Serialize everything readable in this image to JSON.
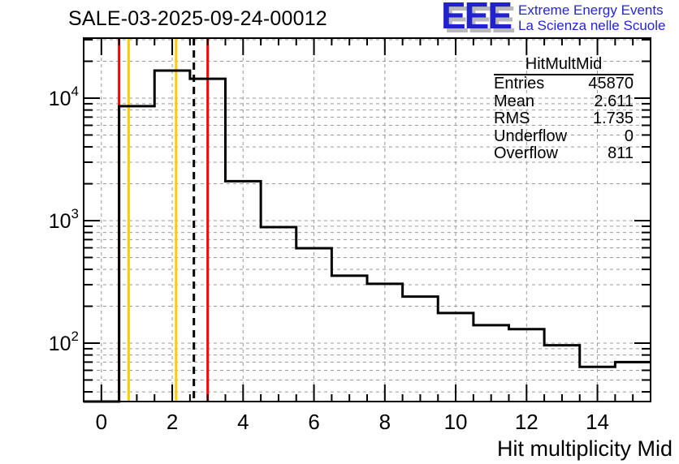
{
  "logo": {
    "acronym": "EEE",
    "line1": "Extreme Energy Events",
    "line2": "La Scienza nelle Scuole",
    "color": "#2222cc",
    "shadow_color": "#b9b9b9"
  },
  "stats": {
    "title": "HitMultMid",
    "rows": [
      {
        "label": "Entries",
        "value": "45870"
      },
      {
        "label": "Mean",
        "value": "2.611"
      },
      {
        "label": "RMS",
        "value": "1.735"
      },
      {
        "label": "Underflow",
        "value": "0"
      },
      {
        "label": "Overflow",
        "value": "811"
      }
    ]
  },
  "chart_data": {
    "type": "histogram-step",
    "title": "SALE-03-2025-09-24-00012",
    "xlabel": "Hit multiplicity Mid",
    "ylabel": "",
    "x_range": [
      -0.5,
      15.5
    ],
    "y_scale": "log",
    "y_range": [
      33.35,
      30900
    ],
    "x_major_ticks": [
      0,
      2,
      4,
      6,
      8,
      10,
      12,
      14
    ],
    "x_minor_tick_step": 0.5,
    "y_label_decades": [
      2,
      3,
      4
    ],
    "grid": true,
    "grid_color": "#999999",
    "histogram_color": "#000000",
    "bin_start": -0.5,
    "bin_width": 1,
    "counts": [
      0,
      8600,
      16800,
      14400,
      2100,
      885,
      595,
      355,
      305,
      240,
      176,
      140,
      130,
      96,
      64,
      70
    ],
    "markers": [
      {
        "name": "red-line-low",
        "x": 0.5,
        "color": "#ff0000",
        "style": "solid"
      },
      {
        "name": "yellow-line-low",
        "x": 0.77,
        "color": "#ffcc00",
        "style": "solid"
      },
      {
        "name": "yellow-line-high",
        "x": 2.11,
        "color": "#ffcc00",
        "style": "solid"
      },
      {
        "name": "mean-line",
        "x": 2.611,
        "color": "#000000",
        "style": "dashed"
      },
      {
        "name": "red-line-high",
        "x": 3.0,
        "color": "#ff0000",
        "style": "solid"
      }
    ]
  }
}
